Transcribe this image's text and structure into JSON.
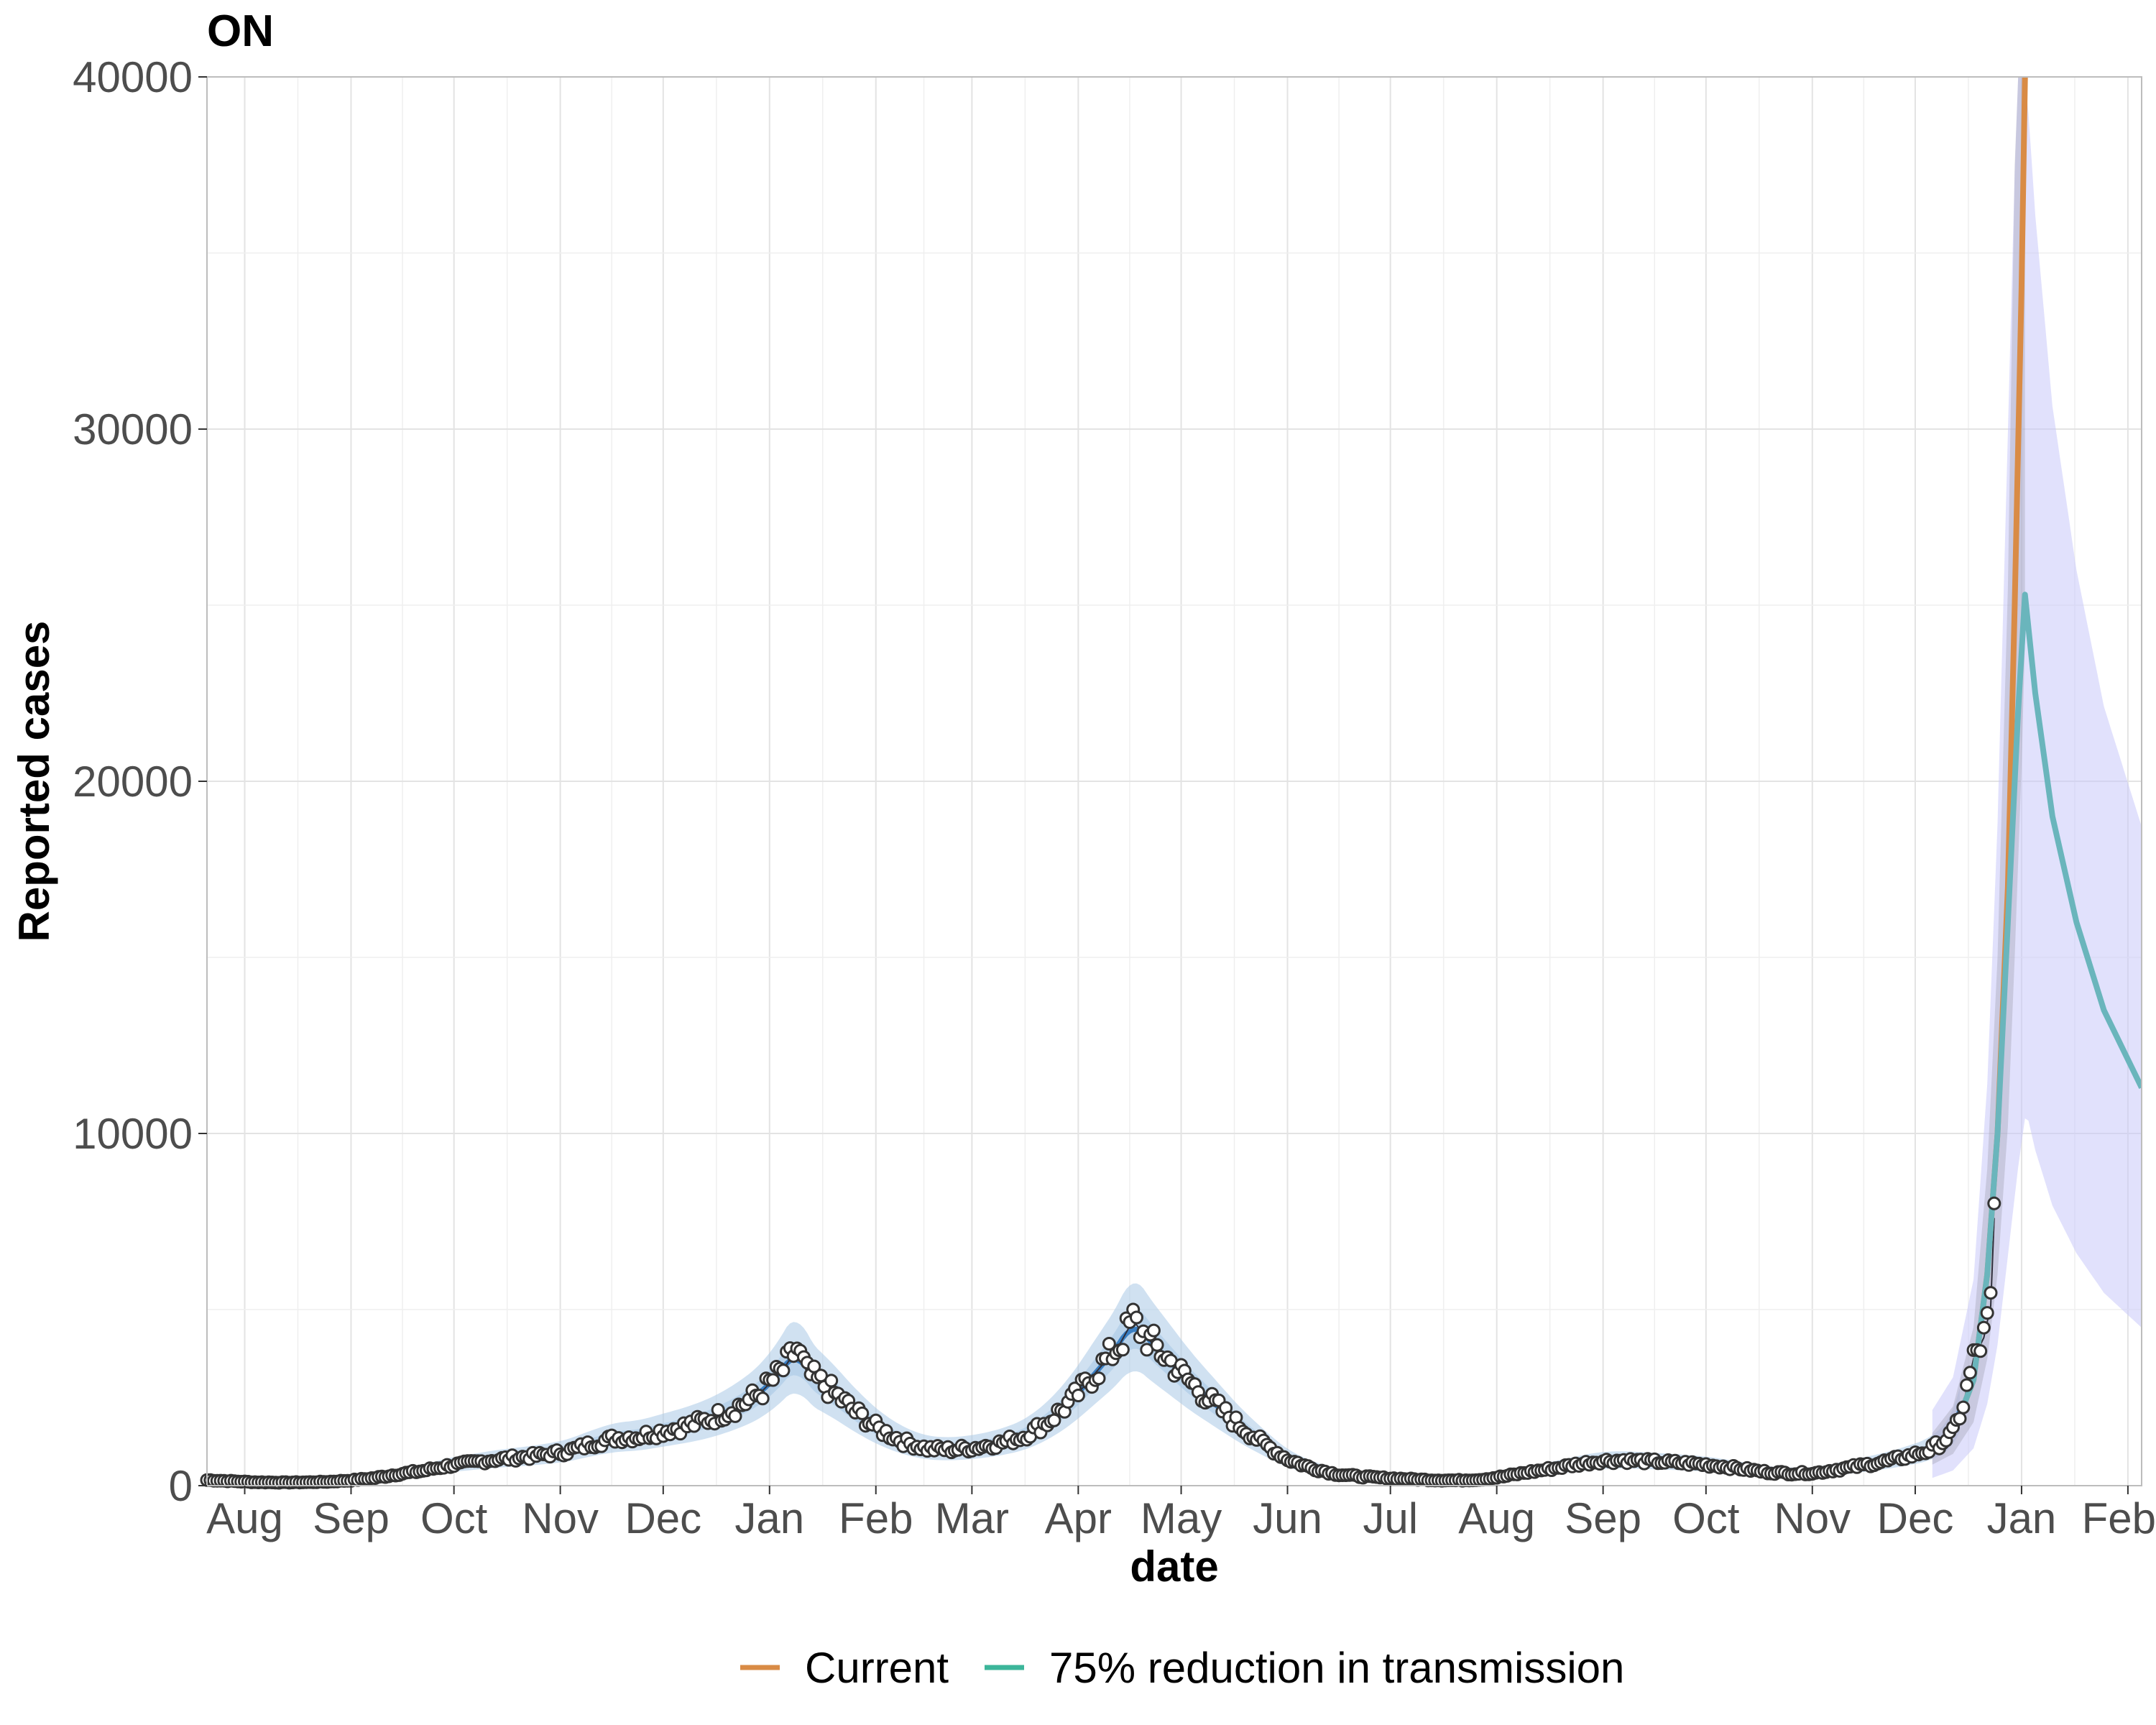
{
  "chart_data": {
    "type": "line",
    "title": "ON",
    "xlabel": "date",
    "ylabel": "Reported cases",
    "ylim": [
      0,
      40000
    ],
    "xlim": [
      "2020-07-21",
      "2022-02-05"
    ],
    "y_ticks": [
      0,
      10000,
      20000,
      30000,
      40000
    ],
    "x_ticks": [
      {
        "date": "2020-08-01",
        "label": "Aug"
      },
      {
        "date": "2020-09-01",
        "label": "Sep"
      },
      {
        "date": "2020-10-01",
        "label": "Oct"
      },
      {
        "date": "2020-11-01",
        "label": "Nov"
      },
      {
        "date": "2020-12-01",
        "label": "Dec"
      },
      {
        "date": "2021-01-01",
        "label": "Jan"
      },
      {
        "date": "2021-02-01",
        "label": "Feb"
      },
      {
        "date": "2021-03-01",
        "label": "Mar"
      },
      {
        "date": "2021-04-01",
        "label": "Apr"
      },
      {
        "date": "2021-05-01",
        "label": "May"
      },
      {
        "date": "2021-06-01",
        "label": "Jun"
      },
      {
        "date": "2021-07-01",
        "label": "Jul"
      },
      {
        "date": "2021-08-01",
        "label": "Aug"
      },
      {
        "date": "2021-09-01",
        "label": "Sep"
      },
      {
        "date": "2021-10-01",
        "label": "Oct"
      },
      {
        "date": "2021-11-01",
        "label": "Nov"
      },
      {
        "date": "2021-12-01",
        "label": "Dec"
      },
      {
        "date": "2022-01-01",
        "label": "Jan"
      },
      {
        "date": "2022-02-01",
        "label": "Feb"
      }
    ],
    "grid": true,
    "legend": {
      "position": "bottom",
      "entries": [
        {
          "label": "Current",
          "color": "#D98B45"
        },
        {
          "label": "75% reduction in transmission",
          "color": "#3CB69A"
        }
      ]
    },
    "colors": {
      "observed_points_fill": "#ffffff",
      "observed_points_stroke": "#333333",
      "fitted_line": "#3A7FC3",
      "fitted_band": "#A9C8E6",
      "current_line": "#D98B45",
      "reduction_line": "#6AB5BC",
      "reduction_band": "#C8C8FA",
      "grid": "#E3E3E3"
    },
    "observed": [
      [
        "2020-07-21",
        160
      ],
      [
        "2020-07-28",
        130
      ],
      [
        "2020-08-04",
        100
      ],
      [
        "2020-08-11",
        90
      ],
      [
        "2020-08-18",
        95
      ],
      [
        "2020-08-25",
        110
      ],
      [
        "2020-09-01",
        150
      ],
      [
        "2020-09-08",
        220
      ],
      [
        "2020-09-15",
        330
      ],
      [
        "2020-09-22",
        420
      ],
      [
        "2020-09-29",
        560
      ],
      [
        "2020-10-06",
        650
      ],
      [
        "2020-10-13",
        740
      ],
      [
        "2020-10-20",
        800
      ],
      [
        "2020-10-27",
        870
      ],
      [
        "2020-11-03",
        970
      ],
      [
        "2020-11-10",
        1180
      ],
      [
        "2020-11-17",
        1350
      ],
      [
        "2020-11-24",
        1400
      ],
      [
        "2020-12-01",
        1550
      ],
      [
        "2020-12-08",
        1700
      ],
      [
        "2020-12-15",
        1900
      ],
      [
        "2020-12-22",
        2200
      ],
      [
        "2020-12-29",
        2600
      ],
      [
        "2021-01-05",
        3300
      ],
      [
        "2021-01-09",
        3900
      ],
      [
        "2021-01-12",
        3200
      ],
      [
        "2021-01-19",
        2700
      ],
      [
        "2021-01-26",
        2100
      ],
      [
        "2021-02-02",
        1600
      ],
      [
        "2021-02-09",
        1250
      ],
      [
        "2021-02-16",
        1050
      ],
      [
        "2021-02-23",
        1020
      ],
      [
        "2021-03-02",
        1080
      ],
      [
        "2021-03-09",
        1200
      ],
      [
        "2021-03-16",
        1400
      ],
      [
        "2021-03-23",
        1800
      ],
      [
        "2021-03-30",
        2400
      ],
      [
        "2021-04-06",
        3200
      ],
      [
        "2021-04-13",
        4000
      ],
      [
        "2021-04-17",
        4700
      ],
      [
        "2021-04-20",
        4300
      ],
      [
        "2021-04-27",
        3600
      ],
      [
        "2021-05-04",
        2900
      ],
      [
        "2021-05-11",
        2300
      ],
      [
        "2021-05-18",
        1700
      ],
      [
        "2021-05-25",
        1200
      ],
      [
        "2021-06-01",
        750
      ],
      [
        "2021-06-08",
        500
      ],
      [
        "2021-06-15",
        330
      ],
      [
        "2021-06-22",
        260
      ],
      [
        "2021-06-29",
        220
      ],
      [
        "2021-07-06",
        190
      ],
      [
        "2021-07-13",
        160
      ],
      [
        "2021-07-20",
        150
      ],
      [
        "2021-07-27",
        170
      ],
      [
        "2021-08-03",
        260
      ],
      [
        "2021-08-10",
        380
      ],
      [
        "2021-08-17",
        480
      ],
      [
        "2021-08-24",
        600
      ],
      [
        "2021-08-31",
        700
      ],
      [
        "2021-09-07",
        720
      ],
      [
        "2021-09-14",
        690
      ],
      [
        "2021-09-21",
        660
      ],
      [
        "2021-09-28",
        620
      ],
      [
        "2021-10-05",
        560
      ],
      [
        "2021-10-12",
        470
      ],
      [
        "2021-10-19",
        380
      ],
      [
        "2021-10-26",
        350
      ],
      [
        "2021-11-02",
        360
      ],
      [
        "2021-11-09",
        470
      ],
      [
        "2021-11-16",
        580
      ],
      [
        "2021-11-23",
        700
      ],
      [
        "2021-11-30",
        860
      ],
      [
        "2021-12-05",
        1000
      ],
      [
        "2021-12-09",
        1250
      ],
      [
        "2021-12-12",
        1500
      ],
      [
        "2021-12-15",
        2300
      ],
      [
        "2021-12-18",
        3600
      ],
      [
        "2021-12-21",
        4200
      ],
      [
        "2021-12-23",
        5100
      ],
      [
        "2021-12-24",
        7600
      ]
    ],
    "series": [
      {
        "name": "Current",
        "values": [
          [
            "2021-12-06",
            1000
          ],
          [
            "2021-12-12",
            1500
          ],
          [
            "2021-12-18",
            3000
          ],
          [
            "2021-12-22",
            6000
          ],
          [
            "2021-12-25",
            10000
          ],
          [
            "2021-12-28",
            17000
          ],
          [
            "2021-12-30",
            25000
          ],
          [
            "2022-01-01",
            34000
          ],
          [
            "2022-01-02",
            40000
          ]
        ]
      },
      {
        "name": "75% reduction in transmission",
        "values": [
          [
            "2021-12-06",
            1000
          ],
          [
            "2021-12-12",
            1500
          ],
          [
            "2021-12-18",
            3000
          ],
          [
            "2021-12-22",
            6000
          ],
          [
            "2021-12-25",
            10000
          ],
          [
            "2021-12-28",
            16000
          ],
          [
            "2021-12-31",
            22000
          ],
          [
            "2022-01-02",
            25300
          ],
          [
            "2022-01-05",
            22500
          ],
          [
            "2022-01-10",
            19000
          ],
          [
            "2022-01-17",
            16000
          ],
          [
            "2022-01-25",
            13500
          ],
          [
            "2022-02-05",
            11300
          ]
        ]
      }
    ]
  }
}
